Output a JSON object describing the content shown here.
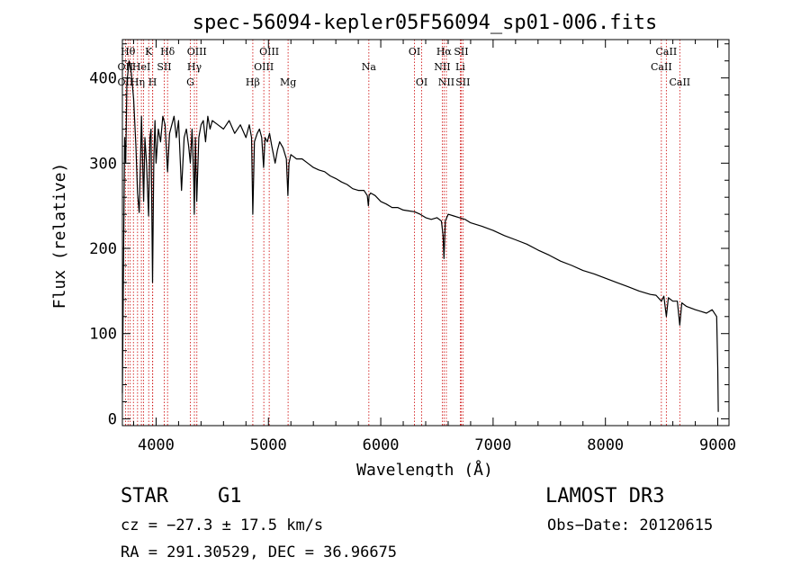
{
  "chart_data": {
    "type": "line",
    "title": "spec-56094-kepler05F56094_sp01-006.fits",
    "xlabel": "Wavelength (Å)",
    "ylabel": "Flux (relative)",
    "xlim": [
      3700,
      9100
    ],
    "ylim": [
      -8,
      445
    ],
    "xticks": [
      4000,
      5000,
      6000,
      7000,
      8000,
      9000
    ],
    "yticks": [
      0,
      100,
      200,
      300,
      400
    ],
    "grid": false,
    "series": [
      {
        "name": "flux",
        "x": [
          3700,
          3710,
          3720,
          3730,
          3740,
          3760,
          3780,
          3800,
          3820,
          3835,
          3850,
          3870,
          3889,
          3900,
          3915,
          3933,
          3945,
          3955,
          3968,
          3980,
          3990,
          4000,
          4020,
          4040,
          4060,
          4080,
          4102,
          4120,
          4140,
          4160,
          4180,
          4200,
          4226,
          4250,
          4270,
          4290,
          4305,
          4320,
          4335,
          4340,
          4350,
          4362,
          4380,
          4400,
          4420,
          4440,
          4460,
          4480,
          4500,
          4550,
          4600,
          4650,
          4700,
          4750,
          4800,
          4830,
          4850,
          4861,
          4875,
          4900,
          4920,
          4940,
          4957,
          4970,
          4990,
          5010,
          5030,
          5060,
          5080,
          5100,
          5130,
          5160,
          5173,
          5183,
          5200,
          5250,
          5300,
          5350,
          5400,
          5450,
          5500,
          5550,
          5600,
          5650,
          5700,
          5750,
          5800,
          5850,
          5880,
          5890,
          5896,
          5910,
          5950,
          6000,
          6050,
          6100,
          6150,
          6200,
          6250,
          6300,
          6350,
          6400,
          6450,
          6500,
          6540,
          6555,
          6563,
          6575,
          6600,
          6650,
          6700,
          6750,
          6800,
          6900,
          7000,
          7100,
          7200,
          7300,
          7400,
          7500,
          7600,
          7700,
          7800,
          7900,
          8000,
          8100,
          8200,
          8300,
          8400,
          8450,
          8498,
          8520,
          8542,
          8560,
          8600,
          8640,
          8662,
          8680,
          8720,
          8760,
          8800,
          8850,
          8900,
          8950,
          8990,
          9000,
          9005
        ],
        "values": [
          30,
          180,
          330,
          300,
          395,
          420,
          405,
          375,
          320,
          265,
          242,
          355,
          255,
          330,
          300,
          238,
          330,
          340,
          160,
          305,
          350,
          300,
          340,
          325,
          355,
          345,
          290,
          335,
          345,
          355,
          330,
          350,
          268,
          330,
          340,
          320,
          300,
          340,
          280,
          240,
          330,
          255,
          330,
          345,
          350,
          325,
          355,
          340,
          350,
          345,
          340,
          350,
          335,
          345,
          330,
          345,
          330,
          240,
          325,
          335,
          340,
          330,
          295,
          330,
          325,
          335,
          320,
          300,
          315,
          325,
          318,
          305,
          262,
          300,
          310,
          305,
          305,
          300,
          295,
          292,
          290,
          285,
          282,
          278,
          275,
          270,
          268,
          268,
          262,
          250,
          262,
          265,
          262,
          255,
          252,
          248,
          248,
          245,
          244,
          243,
          240,
          236,
          234,
          236,
          232,
          215,
          188,
          232,
          240,
          238,
          236,
          234,
          230,
          226,
          221,
          215,
          210,
          205,
          198,
          192,
          185,
          180,
          174,
          170,
          165,
          160,
          155,
          150,
          146,
          145,
          138,
          144,
          120,
          142,
          138,
          138,
          110,
          136,
          132,
          130,
          128,
          126,
          124,
          128,
          120,
          60,
          8
        ]
      }
    ],
    "lines": [
      {
        "wl": 3727,
        "top": "",
        "mid": "OII",
        "bot": "OII"
      },
      {
        "wl": 3750,
        "top": "Hθ",
        "mid": "",
        "bot": ""
      },
      {
        "wl": 3770,
        "top": "",
        "mid": "",
        "bot": ""
      },
      {
        "wl": 3798,
        "top": "",
        "mid": "",
        "bot": ""
      },
      {
        "wl": 3835,
        "top": "",
        "mid": "",
        "bot": "Hη"
      },
      {
        "wl": 3869,
        "top": "",
        "mid": "HeI",
        "bot": ""
      },
      {
        "wl": 3889,
        "top": "",
        "mid": "",
        "bot": ""
      },
      {
        "wl": 3934,
        "top": "K",
        "mid": "",
        "bot": ""
      },
      {
        "wl": 3969,
        "top": "",
        "mid": "",
        "bot": "H"
      },
      {
        "wl": 3970,
        "top": "",
        "mid": "",
        "bot": ""
      },
      {
        "wl": 4072,
        "top": "",
        "mid": "SII",
        "bot": ""
      },
      {
        "wl": 4102,
        "top": "Hδ",
        "mid": "",
        "bot": ""
      },
      {
        "wl": 4305,
        "top": "",
        "mid": "",
        "bot": "G"
      },
      {
        "wl": 4341,
        "top": "",
        "mid": "Hγ",
        "bot": ""
      },
      {
        "wl": 4363,
        "top": "OIII",
        "mid": "",
        "bot": ""
      },
      {
        "wl": 4861,
        "top": "",
        "mid": "",
        "bot": "Hβ"
      },
      {
        "wl": 4959,
        "top": "",
        "mid": "OIII",
        "bot": ""
      },
      {
        "wl": 5007,
        "top": "OIII",
        "mid": "",
        "bot": ""
      },
      {
        "wl": 5175,
        "top": "",
        "mid": "",
        "bot": "Mg"
      },
      {
        "wl": 5894,
        "top": "",
        "mid": "Na",
        "bot": ""
      },
      {
        "wl": 6300,
        "top": "OI",
        "mid": "",
        "bot": ""
      },
      {
        "wl": 6364,
        "top": "",
        "mid": "",
        "bot": "OI"
      },
      {
        "wl": 6548,
        "top": "",
        "mid": "NII",
        "bot": ""
      },
      {
        "wl": 6563,
        "top": "Hα",
        "mid": "",
        "bot": ""
      },
      {
        "wl": 6584,
        "top": "",
        "mid": "",
        "bot": "NII"
      },
      {
        "wl": 6708,
        "top": "",
        "mid": "Li",
        "bot": ""
      },
      {
        "wl": 6716,
        "top": "SII",
        "mid": "",
        "bot": ""
      },
      {
        "wl": 6731,
        "top": "",
        "mid": "",
        "bot": "SII"
      },
      {
        "wl": 8498,
        "top": "",
        "mid": "CaII",
        "bot": ""
      },
      {
        "wl": 8542,
        "top": "CaII",
        "mid": "",
        "bot": ""
      },
      {
        "wl": 8662,
        "top": "",
        "mid": "",
        "bot": "CaII"
      }
    ]
  },
  "info": {
    "class": "STAR",
    "subclass": "G1",
    "survey": "LAMOST DR3",
    "redshift": "cz = −27.3 ± 17.5 km/s",
    "obs_date": "Obs−Date: 20120615",
    "coords": "RA = 291.30529, DEC =  36.96675"
  },
  "colors": {
    "line": "#000000",
    "marker": "#cc0000",
    "axis": "#000000"
  }
}
